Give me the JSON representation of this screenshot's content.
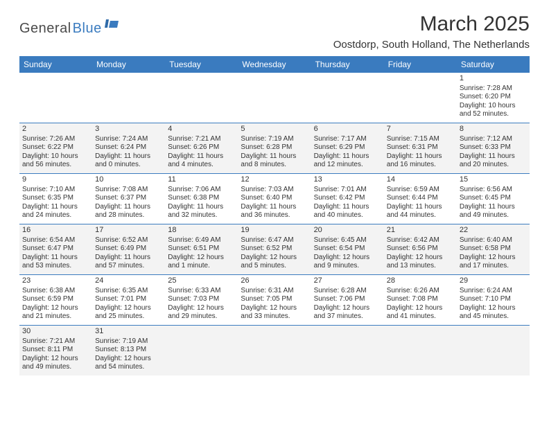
{
  "logo": {
    "general": "General",
    "blue": "Blue"
  },
  "title": "March 2025",
  "location": "Oostdorp, South Holland, The Netherlands",
  "colors": {
    "header_bg": "#3a7bbf",
    "header_text": "#ffffff",
    "shaded_bg": "#f3f3f3",
    "border": "#3a7bbf",
    "text": "#333333"
  },
  "day_headers": [
    "Sunday",
    "Monday",
    "Tuesday",
    "Wednesday",
    "Thursday",
    "Friday",
    "Saturday"
  ],
  "weeks": [
    [
      {
        "day": "",
        "sunrise": "",
        "sunset": "",
        "daylight": "",
        "shaded": false
      },
      {
        "day": "",
        "sunrise": "",
        "sunset": "",
        "daylight": "",
        "shaded": false
      },
      {
        "day": "",
        "sunrise": "",
        "sunset": "",
        "daylight": "",
        "shaded": false
      },
      {
        "day": "",
        "sunrise": "",
        "sunset": "",
        "daylight": "",
        "shaded": false
      },
      {
        "day": "",
        "sunrise": "",
        "sunset": "",
        "daylight": "",
        "shaded": false
      },
      {
        "day": "",
        "sunrise": "",
        "sunset": "",
        "daylight": "",
        "shaded": false
      },
      {
        "day": "1",
        "sunrise": "Sunrise: 7:28 AM",
        "sunset": "Sunset: 6:20 PM",
        "daylight": "Daylight: 10 hours and 52 minutes.",
        "shaded": false
      }
    ],
    [
      {
        "day": "2",
        "sunrise": "Sunrise: 7:26 AM",
        "sunset": "Sunset: 6:22 PM",
        "daylight": "Daylight: 10 hours and 56 minutes.",
        "shaded": true
      },
      {
        "day": "3",
        "sunrise": "Sunrise: 7:24 AM",
        "sunset": "Sunset: 6:24 PM",
        "daylight": "Daylight: 11 hours and 0 minutes.",
        "shaded": true
      },
      {
        "day": "4",
        "sunrise": "Sunrise: 7:21 AM",
        "sunset": "Sunset: 6:26 PM",
        "daylight": "Daylight: 11 hours and 4 minutes.",
        "shaded": true
      },
      {
        "day": "5",
        "sunrise": "Sunrise: 7:19 AM",
        "sunset": "Sunset: 6:28 PM",
        "daylight": "Daylight: 11 hours and 8 minutes.",
        "shaded": true
      },
      {
        "day": "6",
        "sunrise": "Sunrise: 7:17 AM",
        "sunset": "Sunset: 6:29 PM",
        "daylight": "Daylight: 11 hours and 12 minutes.",
        "shaded": true
      },
      {
        "day": "7",
        "sunrise": "Sunrise: 7:15 AM",
        "sunset": "Sunset: 6:31 PM",
        "daylight": "Daylight: 11 hours and 16 minutes.",
        "shaded": true
      },
      {
        "day": "8",
        "sunrise": "Sunrise: 7:12 AM",
        "sunset": "Sunset: 6:33 PM",
        "daylight": "Daylight: 11 hours and 20 minutes.",
        "shaded": true
      }
    ],
    [
      {
        "day": "9",
        "sunrise": "Sunrise: 7:10 AM",
        "sunset": "Sunset: 6:35 PM",
        "daylight": "Daylight: 11 hours and 24 minutes.",
        "shaded": false
      },
      {
        "day": "10",
        "sunrise": "Sunrise: 7:08 AM",
        "sunset": "Sunset: 6:37 PM",
        "daylight": "Daylight: 11 hours and 28 minutes.",
        "shaded": false
      },
      {
        "day": "11",
        "sunrise": "Sunrise: 7:06 AM",
        "sunset": "Sunset: 6:38 PM",
        "daylight": "Daylight: 11 hours and 32 minutes.",
        "shaded": false
      },
      {
        "day": "12",
        "sunrise": "Sunrise: 7:03 AM",
        "sunset": "Sunset: 6:40 PM",
        "daylight": "Daylight: 11 hours and 36 minutes.",
        "shaded": false
      },
      {
        "day": "13",
        "sunrise": "Sunrise: 7:01 AM",
        "sunset": "Sunset: 6:42 PM",
        "daylight": "Daylight: 11 hours and 40 minutes.",
        "shaded": false
      },
      {
        "day": "14",
        "sunrise": "Sunrise: 6:59 AM",
        "sunset": "Sunset: 6:44 PM",
        "daylight": "Daylight: 11 hours and 44 minutes.",
        "shaded": false
      },
      {
        "day": "15",
        "sunrise": "Sunrise: 6:56 AM",
        "sunset": "Sunset: 6:45 PM",
        "daylight": "Daylight: 11 hours and 49 minutes.",
        "shaded": false
      }
    ],
    [
      {
        "day": "16",
        "sunrise": "Sunrise: 6:54 AM",
        "sunset": "Sunset: 6:47 PM",
        "daylight": "Daylight: 11 hours and 53 minutes.",
        "shaded": true
      },
      {
        "day": "17",
        "sunrise": "Sunrise: 6:52 AM",
        "sunset": "Sunset: 6:49 PM",
        "daylight": "Daylight: 11 hours and 57 minutes.",
        "shaded": true
      },
      {
        "day": "18",
        "sunrise": "Sunrise: 6:49 AM",
        "sunset": "Sunset: 6:51 PM",
        "daylight": "Daylight: 12 hours and 1 minute.",
        "shaded": true
      },
      {
        "day": "19",
        "sunrise": "Sunrise: 6:47 AM",
        "sunset": "Sunset: 6:52 PM",
        "daylight": "Daylight: 12 hours and 5 minutes.",
        "shaded": true
      },
      {
        "day": "20",
        "sunrise": "Sunrise: 6:45 AM",
        "sunset": "Sunset: 6:54 PM",
        "daylight": "Daylight: 12 hours and 9 minutes.",
        "shaded": true
      },
      {
        "day": "21",
        "sunrise": "Sunrise: 6:42 AM",
        "sunset": "Sunset: 6:56 PM",
        "daylight": "Daylight: 12 hours and 13 minutes.",
        "shaded": true
      },
      {
        "day": "22",
        "sunrise": "Sunrise: 6:40 AM",
        "sunset": "Sunset: 6:58 PM",
        "daylight": "Daylight: 12 hours and 17 minutes.",
        "shaded": true
      }
    ],
    [
      {
        "day": "23",
        "sunrise": "Sunrise: 6:38 AM",
        "sunset": "Sunset: 6:59 PM",
        "daylight": "Daylight: 12 hours and 21 minutes.",
        "shaded": false
      },
      {
        "day": "24",
        "sunrise": "Sunrise: 6:35 AM",
        "sunset": "Sunset: 7:01 PM",
        "daylight": "Daylight: 12 hours and 25 minutes.",
        "shaded": false
      },
      {
        "day": "25",
        "sunrise": "Sunrise: 6:33 AM",
        "sunset": "Sunset: 7:03 PM",
        "daylight": "Daylight: 12 hours and 29 minutes.",
        "shaded": false
      },
      {
        "day": "26",
        "sunrise": "Sunrise: 6:31 AM",
        "sunset": "Sunset: 7:05 PM",
        "daylight": "Daylight: 12 hours and 33 minutes.",
        "shaded": false
      },
      {
        "day": "27",
        "sunrise": "Sunrise: 6:28 AM",
        "sunset": "Sunset: 7:06 PM",
        "daylight": "Daylight: 12 hours and 37 minutes.",
        "shaded": false
      },
      {
        "day": "28",
        "sunrise": "Sunrise: 6:26 AM",
        "sunset": "Sunset: 7:08 PM",
        "daylight": "Daylight: 12 hours and 41 minutes.",
        "shaded": false
      },
      {
        "day": "29",
        "sunrise": "Sunrise: 6:24 AM",
        "sunset": "Sunset: 7:10 PM",
        "daylight": "Daylight: 12 hours and 45 minutes.",
        "shaded": false
      }
    ],
    [
      {
        "day": "30",
        "sunrise": "Sunrise: 7:21 AM",
        "sunset": "Sunset: 8:11 PM",
        "daylight": "Daylight: 12 hours and 49 minutes.",
        "shaded": true
      },
      {
        "day": "31",
        "sunrise": "Sunrise: 7:19 AM",
        "sunset": "Sunset: 8:13 PM",
        "daylight": "Daylight: 12 hours and 54 minutes.",
        "shaded": true
      },
      {
        "day": "",
        "sunrise": "",
        "sunset": "",
        "daylight": "",
        "shaded": true
      },
      {
        "day": "",
        "sunrise": "",
        "sunset": "",
        "daylight": "",
        "shaded": true
      },
      {
        "day": "",
        "sunrise": "",
        "sunset": "",
        "daylight": "",
        "shaded": true
      },
      {
        "day": "",
        "sunrise": "",
        "sunset": "",
        "daylight": "",
        "shaded": true
      },
      {
        "day": "",
        "sunrise": "",
        "sunset": "",
        "daylight": "",
        "shaded": true
      }
    ]
  ]
}
